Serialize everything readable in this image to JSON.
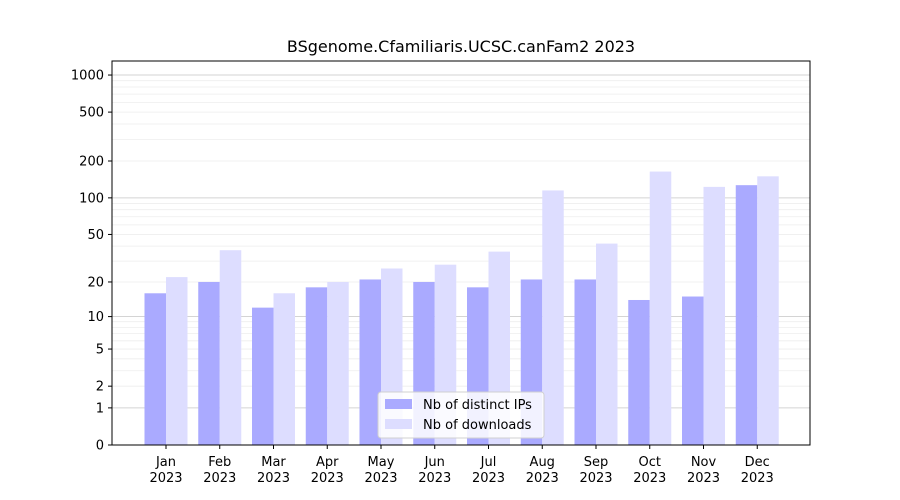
{
  "chart_data": {
    "type": "bar",
    "title": "BSgenome.Cfamiliaris.UCSC.canFam2 2023",
    "xlabel": "",
    "ylabel": "",
    "yscale": "log(1+y)",
    "ylim": [
      0,
      1300
    ],
    "yticks": [
      0,
      1,
      2,
      5,
      10,
      20,
      50,
      100,
      200,
      500,
      1000
    ],
    "categories": [
      "Jan\n2023",
      "Feb\n2023",
      "Mar\n2023",
      "Apr\n2023",
      "May\n2023",
      "Jun\n2023",
      "Jul\n2023",
      "Aug\n2023",
      "Sep\n2023",
      "Oct\n2023",
      "Nov\n2023",
      "Dec\n2023"
    ],
    "series": [
      {
        "name": "Nb of distinct IPs",
        "color": "#aaaaff",
        "values": [
          16,
          20,
          12,
          18,
          21,
          20,
          18,
          21,
          21,
          14,
          15,
          127
        ]
      },
      {
        "name": "Nb of downloads",
        "color": "#ddddff",
        "values": [
          22,
          37,
          16,
          20,
          26,
          28,
          36,
          115,
          42,
          164,
          123,
          150
        ]
      }
    ],
    "legend": "bottom-center",
    "grid": true
  }
}
